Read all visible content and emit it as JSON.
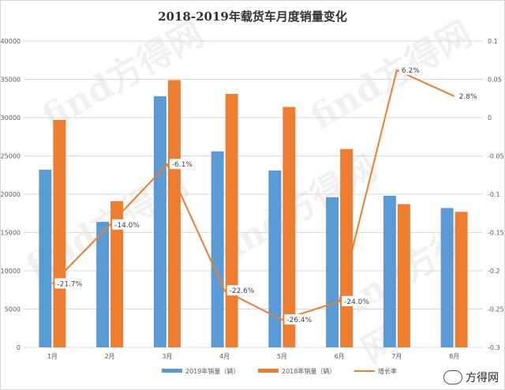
{
  "chart_data": {
    "type": "bar",
    "title": "2018-2019年载货车月度销量变化",
    "categories": [
      "1月",
      "2月",
      "3月",
      "4月",
      "5月",
      "6月",
      "7月",
      "8月"
    ],
    "series": [
      {
        "name": "2019年销量（辆）",
        "type": "bar",
        "axis": "left",
        "color": "#5b9bd5",
        "values": [
          23200,
          16400,
          32800,
          25600,
          23100,
          19600,
          19800,
          18200
        ]
      },
      {
        "name": "2018年销量（辆）",
        "type": "bar",
        "axis": "left",
        "color": "#ed7d31",
        "values": [
          29700,
          19100,
          34900,
          33100,
          31400,
          25900,
          18700,
          17700
        ]
      },
      {
        "name": "增长率",
        "type": "line",
        "axis": "right",
        "color": "#ed7d31",
        "values": [
          -0.217,
          -0.14,
          -0.061,
          -0.226,
          -0.264,
          -0.24,
          0.062,
          0.028
        ],
        "labels": [
          "-21.7%",
          "-14.0%",
          "-6.1%",
          "-22.6%",
          "-26.4%",
          "-24.0%",
          "6.2%",
          "2.8%"
        ]
      }
    ],
    "ylim_left": [
      0,
      40000
    ],
    "yticks_left": [
      0,
      5000,
      10000,
      15000,
      20000,
      25000,
      30000,
      35000,
      40000
    ],
    "ylim_right": [
      -0.3,
      0.1
    ],
    "yticks_right": [
      "-0.3",
      "-0.25",
      "-0.2",
      "-0.15",
      "-0.1",
      "-0.05",
      "0",
      "0.05",
      "0.1"
    ],
    "grid": true,
    "legend_position": "bottom"
  },
  "watermark": "find方得网",
  "brand_label": "方得网"
}
